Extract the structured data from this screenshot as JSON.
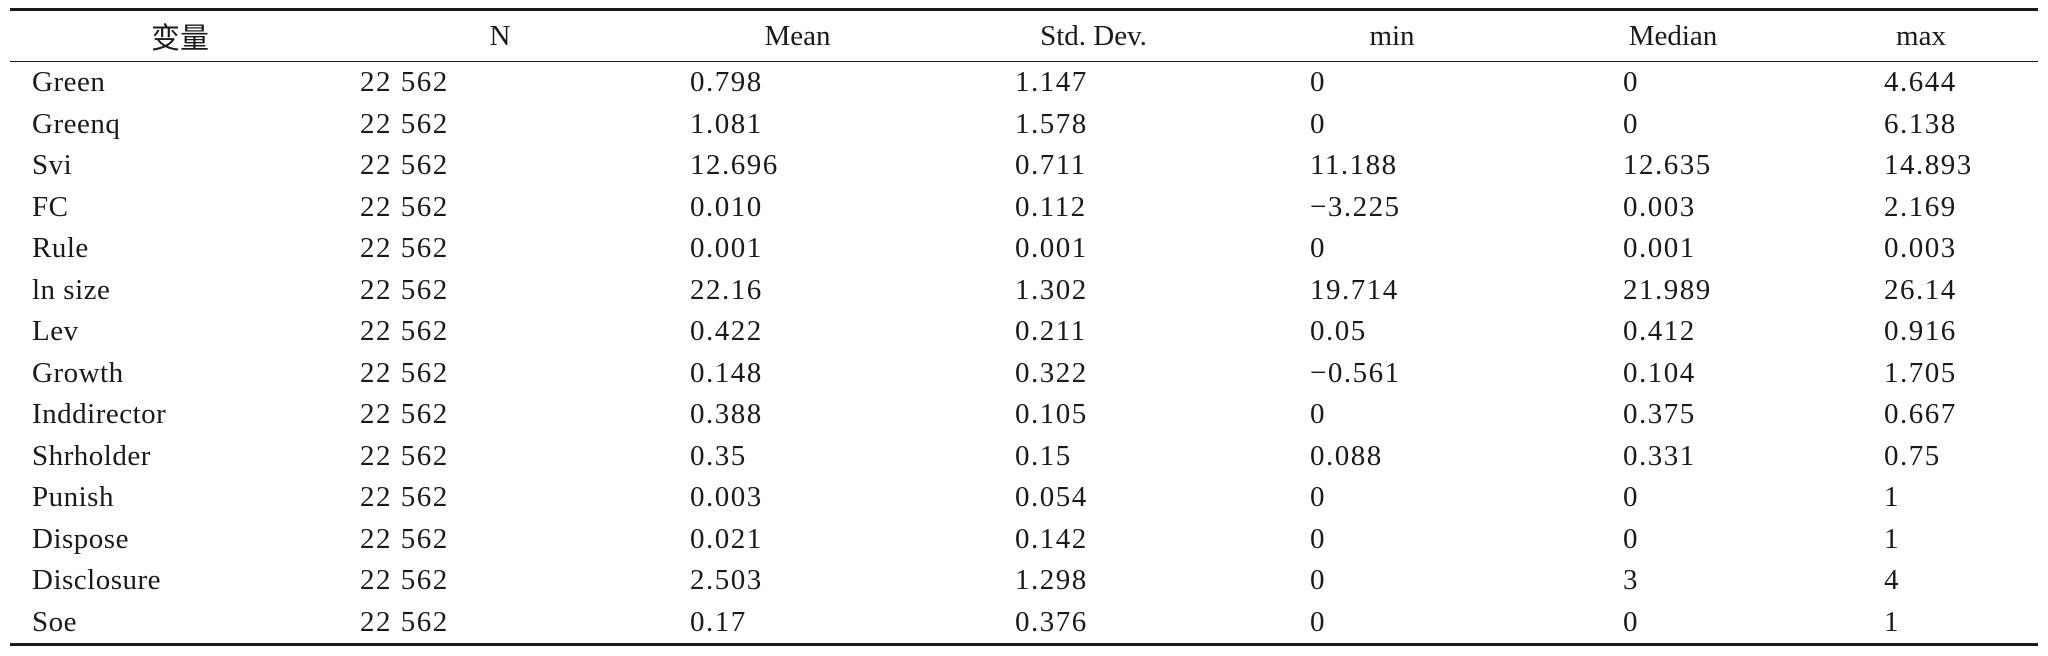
{
  "table": {
    "headers": [
      "变量",
      "N",
      "Mean",
      "Std. Dev.",
      "min",
      "Median",
      "max"
    ],
    "rows": [
      [
        "Green",
        "22 562",
        "0.798",
        "1.147",
        "0",
        "0",
        "4.644"
      ],
      [
        "Greenq",
        "22 562",
        "1.081",
        "1.578",
        "0",
        "0",
        "6.138"
      ],
      [
        "Svi",
        "22 562",
        "12.696",
        "0.711",
        "11.188",
        "12.635",
        "14.893"
      ],
      [
        "FC",
        "22 562",
        "0.010",
        "0.112",
        "−3.225",
        "0.003",
        "2.169"
      ],
      [
        "Rule",
        "22 562",
        "0.001",
        "0.001",
        "0",
        "0.001",
        "0.003"
      ],
      [
        "ln size",
        "22 562",
        "22.16",
        "1.302",
        "19.714",
        "21.989",
        "26.14"
      ],
      [
        "Lev",
        "22 562",
        "0.422",
        "0.211",
        "0.05",
        "0.412",
        "0.916"
      ],
      [
        "Growth",
        "22 562",
        "0.148",
        "0.322",
        "−0.561",
        "0.104",
        "1.705"
      ],
      [
        "Inddirector",
        "22 562",
        "0.388",
        "0.105",
        "0",
        "0.375",
        "0.667"
      ],
      [
        "Shrholder",
        "22 562",
        "0.35",
        "0.15",
        "0.088",
        "0.331",
        "0.75"
      ],
      [
        "Punish",
        "22 562",
        "0.003",
        "0.054",
        "0",
        "0",
        "1"
      ],
      [
        "Dispose",
        "22 562",
        "0.021",
        "0.142",
        "0",
        "0",
        "1"
      ],
      [
        "Disclosure",
        "22 562",
        "2.503",
        "1.298",
        "0",
        "3",
        "4"
      ],
      [
        "Soe",
        "22 562",
        "0.17",
        "0.376",
        "0",
        "0",
        "1"
      ]
    ]
  }
}
